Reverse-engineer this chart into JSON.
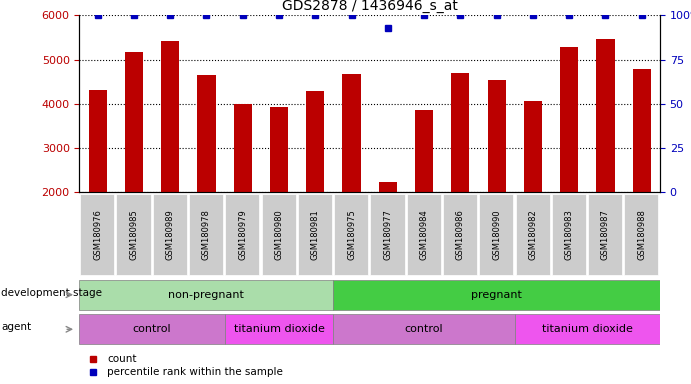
{
  "title": "GDS2878 / 1436946_s_at",
  "samples": [
    "GSM180976",
    "GSM180985",
    "GSM180989",
    "GSM180978",
    "GSM180979",
    "GSM180980",
    "GSM180981",
    "GSM180975",
    "GSM180977",
    "GSM180984",
    "GSM180986",
    "GSM180990",
    "GSM180982",
    "GSM180983",
    "GSM180987",
    "GSM180988"
  ],
  "counts": [
    4320,
    5170,
    5420,
    4650,
    4000,
    3930,
    4280,
    4670,
    2230,
    3860,
    4700,
    4530,
    4070,
    5290,
    5470,
    4780
  ],
  "percentile_ranks": [
    100,
    100,
    100,
    100,
    100,
    100,
    100,
    100,
    93,
    100,
    100,
    100,
    100,
    100,
    100,
    100
  ],
  "bar_color": "#bb0000",
  "dot_color": "#0000bb",
  "ylim_left": [
    2000,
    6000
  ],
  "ylim_right": [
    0,
    100
  ],
  "yticks_left": [
    2000,
    3000,
    4000,
    5000,
    6000
  ],
  "yticks_right": [
    0,
    25,
    50,
    75,
    100
  ],
  "groups": {
    "development_stage": [
      {
        "label": "non-pregnant",
        "start": 0,
        "end": 7,
        "color": "#aaddaa"
      },
      {
        "label": "pregnant",
        "start": 7,
        "end": 16,
        "color": "#44cc44"
      }
    ],
    "agent": [
      {
        "label": "control",
        "start": 0,
        "end": 4,
        "color": "#cc77cc"
      },
      {
        "label": "titanium dioxide",
        "start": 4,
        "end": 7,
        "color": "#ee55ee"
      },
      {
        "label": "control",
        "start": 7,
        "end": 12,
        "color": "#cc77cc"
      },
      {
        "label": "titanium dioxide",
        "start": 12,
        "end": 16,
        "color": "#ee55ee"
      }
    ]
  }
}
